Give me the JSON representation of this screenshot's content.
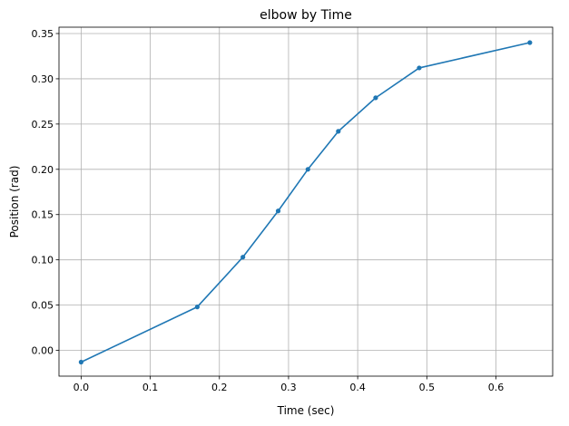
{
  "chart_data": {
    "type": "line",
    "title": "elbow by Time",
    "xlabel": "Time (sec)",
    "ylabel": "Position (rad)",
    "xlim": [
      -0.032,
      0.682
    ],
    "ylim": [
      -0.0285,
      0.357
    ],
    "x_ticks": [
      0.0,
      0.1,
      0.2,
      0.3,
      0.4,
      0.5,
      0.6
    ],
    "x_tick_labels": [
      "0.0",
      "0.1",
      "0.2",
      "0.3",
      "0.4",
      "0.5",
      "0.6"
    ],
    "y_ticks": [
      0.0,
      0.05,
      0.1,
      0.15,
      0.2,
      0.25,
      0.3,
      0.35
    ],
    "y_tick_labels": [
      "0.00",
      "0.05",
      "0.10",
      "0.15",
      "0.20",
      "0.25",
      "0.30",
      "0.35"
    ],
    "grid": true,
    "series": [
      {
        "color": "#1f77b4",
        "marker": "circle",
        "x": [
          0.0,
          0.168,
          0.234,
          0.285,
          0.328,
          0.372,
          0.426,
          0.489,
          0.649
        ],
        "y": [
          -0.013,
          0.048,
          0.103,
          0.154,
          0.2,
          0.242,
          0.279,
          0.312,
          0.34
        ]
      }
    ]
  }
}
